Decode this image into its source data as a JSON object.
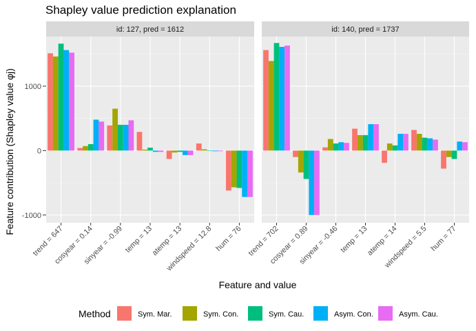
{
  "chart_data": {
    "type": "bar",
    "title": "Shapley value prediction explanation",
    "xlabel": "Feature and value",
    "ylabel": "Feature contribution (Shapley value φj)",
    "ylim": [
      -1120,
      1770
    ],
    "yticks": [
      -1000,
      0,
      1000
    ],
    "yticks_labels": [
      "-1000",
      "0",
      "1000"
    ],
    "grid": true,
    "legend": {
      "title": "Method",
      "position": "bottom",
      "entries": [
        {
          "name": "Sym. Mar.",
          "color": "#F8766D"
        },
        {
          "name": "Sym. Con.",
          "color": "#A3A500"
        },
        {
          "name": "Sym. Cau.",
          "color": "#00BF7D"
        },
        {
          "name": "Asym. Con.",
          "color": "#00B0F6"
        },
        {
          "name": "Asym. Cau.",
          "color": "#E76BF3"
        }
      ]
    },
    "panels": [
      {
        "strip": "id: 127, pred = 1612",
        "categories": [
          "trend = 647",
          "cosyear = 0.14",
          "sinyear = -0.99",
          "temp = 13",
          "atemp = 13",
          "windspeed = 12.8",
          "hum = 76"
        ],
        "series": [
          {
            "name": "Sym. Mar.",
            "values": [
              1510,
              40,
              390,
              290,
              -130,
              110,
              -620
            ]
          },
          {
            "name": "Sym. Con.",
            "values": [
              1460,
              70,
              650,
              15,
              -30,
              20,
              -570
            ]
          },
          {
            "name": "Sym. Cau.",
            "values": [
              1660,
              100,
              400,
              45,
              -20,
              0,
              -580
            ]
          },
          {
            "name": "Asym. Con.",
            "values": [
              1560,
              480,
              400,
              -20,
              -70,
              -10,
              -720
            ]
          },
          {
            "name": "Asym. Cau.",
            "values": [
              1520,
              450,
              470,
              -20,
              -70,
              -10,
              -720
            ]
          }
        ]
      },
      {
        "strip": "id: 140, pred = 1737",
        "categories": [
          "trend = 702",
          "cosyear = 0.89",
          "sinyear = -0.46",
          "temp = 13",
          "atemp = 14",
          "windspeed = 5.5",
          "hum = 77"
        ],
        "series": [
          {
            "name": "Sym. Mar.",
            "values": [
              1560,
              -100,
              50,
              340,
              -190,
              320,
              -280
            ]
          },
          {
            "name": "Sym. Con.",
            "values": [
              1390,
              -340,
              180,
              240,
              110,
              260,
              -100
            ]
          },
          {
            "name": "Sym. Cau.",
            "values": [
              1670,
              -440,
              110,
              240,
              80,
              200,
              -130
            ]
          },
          {
            "name": "Asym. Con.",
            "values": [
              1610,
              -1000,
              130,
              410,
              260,
              190,
              140
            ]
          },
          {
            "name": "Asym. Cau.",
            "values": [
              1630,
              -1000,
              120,
              410,
              260,
              170,
              130
            ]
          }
        ]
      }
    ]
  }
}
